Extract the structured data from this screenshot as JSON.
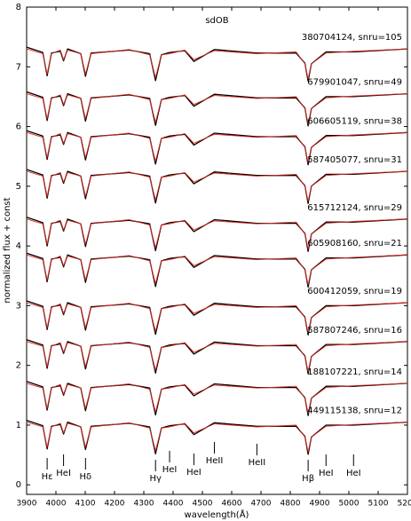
{
  "chart_data": {
    "type": "line",
    "title": "sdOB",
    "x_label": "wavelength(Å)",
    "y_label": "normalized flux + const",
    "xlim": [
      3900,
      5200
    ],
    "xticks": [
      3900,
      4000,
      4100,
      4200,
      4300,
      4400,
      4500,
      4600,
      4700,
      4800,
      4900,
      5000,
      5100,
      5200
    ],
    "ylim": [
      -0.16,
      8
    ],
    "yticks": [
      0,
      1,
      2,
      3,
      4,
      5,
      6,
      7,
      8
    ],
    "grid": false,
    "observed_color": "#000000",
    "model_color": "#e0281e",
    "x": [
      3900,
      3955,
      3970,
      3985,
      4015,
      4026,
      4040,
      4085,
      4101,
      4120,
      4250,
      4320,
      4340,
      4360,
      4388,
      4440,
      4471,
      4541,
      4686,
      4820,
      4850,
      4861,
      4872,
      4922,
      5016,
      5200
    ],
    "spectra": [
      {
        "label": "380704124, snru=105",
        "observed": [
          7.33,
          7.24,
          6.85,
          7.23,
          7.26,
          7.1,
          7.3,
          7.22,
          6.84,
          7.23,
          7.28,
          7.22,
          6.77,
          7.2,
          7.24,
          7.27,
          7.09,
          7.29,
          7.23,
          7.23,
          7.06,
          6.76,
          7.05,
          7.25,
          7.25,
          7.3
        ],
        "model": [
          7.3,
          7.22,
          6.88,
          7.22,
          7.28,
          7.12,
          7.28,
          7.22,
          6.88,
          7.22,
          7.29,
          7.2,
          6.82,
          7.2,
          7.22,
          7.28,
          7.12,
          7.27,
          7.22,
          7.25,
          7.05,
          6.8,
          7.05,
          7.23,
          7.26,
          7.3
        ]
      },
      {
        "label": "679901047, snru=49",
        "observed": [
          6.58,
          6.49,
          6.1,
          6.48,
          6.51,
          6.35,
          6.55,
          6.47,
          6.09,
          6.48,
          6.53,
          6.47,
          6.02,
          6.45,
          6.49,
          6.52,
          6.34,
          6.54,
          6.48,
          6.48,
          6.31,
          6.01,
          6.3,
          6.5,
          6.5,
          6.55
        ],
        "model": [
          6.55,
          6.47,
          6.13,
          6.47,
          6.53,
          6.37,
          6.53,
          6.47,
          6.13,
          6.47,
          6.54,
          6.45,
          6.07,
          6.45,
          6.47,
          6.53,
          6.37,
          6.52,
          6.47,
          6.5,
          6.3,
          6.05,
          6.3,
          6.48,
          6.51,
          6.55
        ]
      },
      {
        "label": "606605119, snru=38",
        "observed": [
          5.93,
          5.84,
          5.45,
          5.83,
          5.86,
          5.7,
          5.9,
          5.82,
          5.44,
          5.83,
          5.88,
          5.82,
          5.37,
          5.8,
          5.84,
          5.87,
          5.69,
          5.89,
          5.83,
          5.83,
          5.66,
          5.36,
          5.65,
          5.85,
          5.85,
          5.9
        ],
        "model": [
          5.9,
          5.82,
          5.48,
          5.82,
          5.88,
          5.72,
          5.88,
          5.82,
          5.48,
          5.82,
          5.89,
          5.8,
          5.42,
          5.8,
          5.82,
          5.88,
          5.72,
          5.87,
          5.82,
          5.85,
          5.65,
          5.4,
          5.65,
          5.83,
          5.86,
          5.9
        ]
      },
      {
        "label": "587405077, snru=31",
        "observed": [
          5.28,
          5.19,
          4.8,
          5.18,
          5.21,
          5.05,
          5.25,
          5.17,
          4.79,
          5.18,
          5.23,
          5.17,
          4.72,
          5.15,
          5.19,
          5.22,
          5.04,
          5.24,
          5.18,
          5.18,
          5.01,
          4.71,
          5,
          5.2,
          5.2,
          5.25
        ],
        "model": [
          5.25,
          5.17,
          4.83,
          5.17,
          5.23,
          5.07,
          5.23,
          5.17,
          4.83,
          5.17,
          5.24,
          5.15,
          4.77,
          5.15,
          5.17,
          5.23,
          5.07,
          5.22,
          5.17,
          5.2,
          5,
          4.75,
          5,
          5.18,
          5.21,
          5.25
        ]
      },
      {
        "label": "615712124, snru=29",
        "observed": [
          4.48,
          4.39,
          4,
          4.38,
          4.41,
          4.25,
          4.45,
          4.37,
          3.99,
          4.38,
          4.43,
          4.37,
          3.92,
          4.35,
          4.39,
          4.42,
          4.24,
          4.44,
          4.38,
          4.38,
          4.21,
          3.91,
          4.2,
          4.4,
          4.4,
          4.45
        ],
        "model": [
          4.45,
          4.37,
          4.03,
          4.37,
          4.43,
          4.27,
          4.43,
          4.37,
          4.03,
          4.37,
          4.44,
          4.35,
          3.97,
          4.35,
          4.37,
          4.43,
          4.27,
          4.42,
          4.37,
          4.4,
          4.2,
          3.95,
          4.2,
          4.38,
          4.41,
          4.45
        ]
      },
      {
        "label": "605908160, snru=21",
        "observed": [
          3.88,
          3.79,
          3.4,
          3.78,
          3.81,
          3.65,
          3.85,
          3.77,
          3.39,
          3.78,
          3.83,
          3.77,
          3.32,
          3.75,
          3.79,
          3.82,
          3.64,
          3.84,
          3.78,
          3.78,
          3.61,
          3.31,
          3.6,
          3.8,
          3.8,
          3.85
        ],
        "model": [
          3.85,
          3.77,
          3.43,
          3.77,
          3.83,
          3.67,
          3.83,
          3.77,
          3.43,
          3.77,
          3.84,
          3.75,
          3.37,
          3.75,
          3.77,
          3.83,
          3.67,
          3.82,
          3.77,
          3.8,
          3.6,
          3.35,
          3.6,
          3.78,
          3.81,
          3.85
        ]
      },
      {
        "label": "600412059, snru=19",
        "observed": [
          3.08,
          2.99,
          2.6,
          2.98,
          3.01,
          2.85,
          3.05,
          2.97,
          2.59,
          2.98,
          3.03,
          2.97,
          2.52,
          2.95,
          2.99,
          3.02,
          2.84,
          3.04,
          2.98,
          2.98,
          2.81,
          2.51,
          2.8,
          3,
          3,
          3.05
        ],
        "model": [
          3.05,
          2.97,
          2.63,
          2.97,
          3.03,
          2.87,
          3.03,
          2.97,
          2.63,
          2.97,
          3.04,
          2.95,
          2.57,
          2.95,
          2.97,
          3.03,
          2.87,
          3.02,
          2.97,
          3,
          2.8,
          2.55,
          2.8,
          2.98,
          3.01,
          3.05
        ]
      },
      {
        "label": "587807246, snru=16",
        "observed": [
          2.43,
          2.34,
          1.95,
          2.33,
          2.36,
          2.2,
          2.4,
          2.32,
          1.94,
          2.33,
          2.38,
          2.32,
          1.87,
          2.3,
          2.34,
          2.37,
          2.19,
          2.39,
          2.33,
          2.33,
          2.16,
          1.86,
          2.15,
          2.35,
          2.35,
          2.4
        ],
        "model": [
          2.4,
          2.32,
          1.98,
          2.32,
          2.38,
          2.22,
          2.38,
          2.32,
          1.98,
          2.32,
          2.39,
          2.3,
          1.92,
          2.3,
          2.32,
          2.38,
          2.22,
          2.37,
          2.32,
          2.35,
          2.15,
          1.9,
          2.15,
          2.33,
          2.36,
          2.4
        ]
      },
      {
        "label": "188107221, snru=14",
        "observed": [
          1.73,
          1.64,
          1.25,
          1.63,
          1.66,
          1.5,
          1.7,
          1.62,
          1.24,
          1.63,
          1.68,
          1.62,
          1.17,
          1.6,
          1.64,
          1.67,
          1.49,
          1.69,
          1.63,
          1.63,
          1.46,
          1.16,
          1.45,
          1.65,
          1.65,
          1.7
        ],
        "model": [
          1.7,
          1.62,
          1.28,
          1.62,
          1.68,
          1.52,
          1.68,
          1.62,
          1.28,
          1.62,
          1.69,
          1.6,
          1.22,
          1.6,
          1.62,
          1.68,
          1.52,
          1.67,
          1.62,
          1.65,
          1.45,
          1.2,
          1.45,
          1.63,
          1.66,
          1.7
        ]
      },
      {
        "label": "449115138, snru=12",
        "observed": [
          1.08,
          0.99,
          0.6,
          0.98,
          1.01,
          0.85,
          1.05,
          0.97,
          0.59,
          0.98,
          1.03,
          0.97,
          0.52,
          0.95,
          0.99,
          1.02,
          0.84,
          1.04,
          0.98,
          0.98,
          0.81,
          0.51,
          0.8,
          1,
          1,
          1.05
        ],
        "model": [
          1.05,
          0.97,
          0.63,
          0.97,
          1.03,
          0.87,
          1.03,
          0.97,
          0.63,
          0.97,
          1.04,
          0.95,
          0.57,
          0.95,
          0.97,
          1.03,
          0.87,
          1.02,
          0.97,
          1,
          0.8,
          0.55,
          0.8,
          0.98,
          1.01,
          1.05
        ]
      }
    ],
    "annotations": [
      {
        "x": 3970,
        "label": "Hε"
      },
      {
        "x": 4026,
        "label": "HeI"
      },
      {
        "x": 4101,
        "label": "Hδ"
      },
      {
        "x": 4340,
        "label": "Hγ"
      },
      {
        "x": 4388,
        "label": "HeI"
      },
      {
        "x": 4471,
        "label": "HeI"
      },
      {
        "x": 4541,
        "label": "HeII"
      },
      {
        "x": 4686,
        "label": "HeII"
      },
      {
        "x": 4861,
        "label": "Hβ"
      },
      {
        "x": 4922,
        "label": "HeI"
      },
      {
        "x": 5016,
        "label": "HeI"
      }
    ]
  }
}
